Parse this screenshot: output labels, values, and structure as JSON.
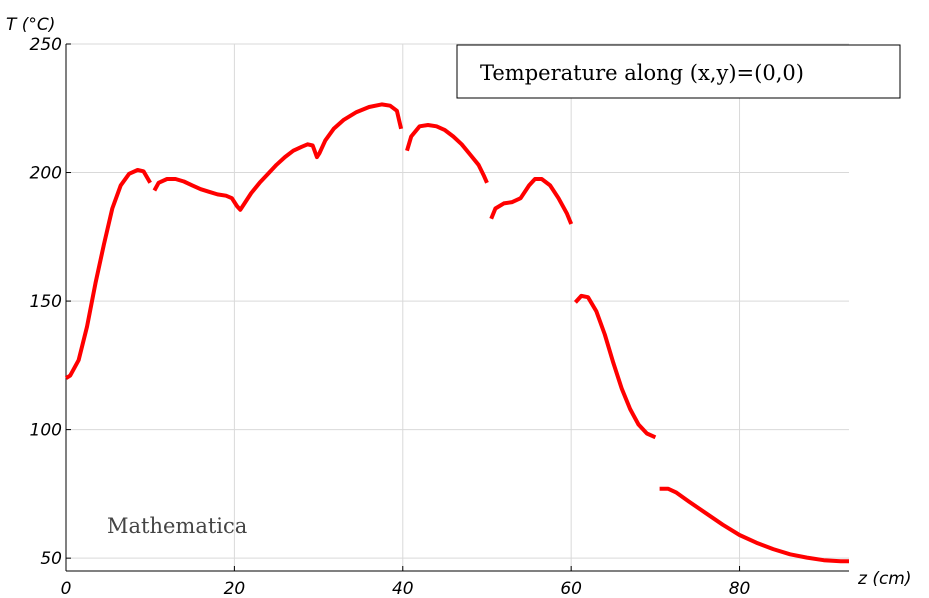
{
  "chart_data": {
    "type": "line",
    "title": "",
    "xlabel": "z (cm)",
    "ylabel": "T (°C)",
    "xlim": [
      0,
      93
    ],
    "ylim": [
      45,
      250
    ],
    "x_ticks": [
      0,
      20,
      40,
      60,
      80
    ],
    "y_ticks": [
      50,
      100,
      150,
      200,
      250
    ],
    "grid": true,
    "legend_placement": "top-right",
    "watermark": "Mathematica",
    "series": [
      {
        "name": "Temperature along (x,y)=(0,0)",
        "color": "#ff0000",
        "segments": [
          [
            [
              0,
              120
            ],
            [
              0.5,
              121
            ],
            [
              1.5,
              127
            ],
            [
              2.5,
              140
            ],
            [
              3.5,
              157
            ],
            [
              4.5,
              172
            ],
            [
              5.5,
              186
            ],
            [
              6.5,
              195
            ],
            [
              7.5,
              199.5
            ],
            [
              8.5,
              201
            ],
            [
              9.2,
              200.5
            ],
            [
              10,
              196
            ]
          ],
          [
            [
              10.5,
              193
            ],
            [
              11,
              196
            ],
            [
              12,
              197.5
            ],
            [
              13,
              197.5
            ],
            [
              14,
              196.5
            ],
            [
              15,
              195
            ],
            [
              16,
              193.5
            ],
            [
              17,
              192.5
            ],
            [
              18,
              191.5
            ],
            [
              19,
              191
            ],
            [
              19.7,
              190
            ],
            [
              20.3,
              187
            ],
            [
              20.7,
              185.5
            ],
            [
              21,
              187
            ],
            [
              22,
              192
            ],
            [
              23,
              196
            ],
            [
              24,
              199.5
            ],
            [
              25,
              203
            ],
            [
              26,
              206
            ],
            [
              27,
              208.5
            ],
            [
              28,
              210
            ],
            [
              28.7,
              211
            ],
            [
              29.3,
              210.5
            ],
            [
              29.8,
              206
            ],
            [
              30.1,
              207.5
            ],
            [
              30.8,
              212.5
            ],
            [
              31.8,
              217
            ],
            [
              33,
              220.5
            ],
            [
              34.5,
              223.5
            ],
            [
              36,
              225.5
            ],
            [
              37.5,
              226.5
            ],
            [
              38.5,
              226
            ],
            [
              39.3,
              224
            ],
            [
              39.8,
              217
            ]
          ],
          [
            [
              40.5,
              208.5
            ],
            [
              41,
              214
            ],
            [
              42,
              218
            ],
            [
              43,
              218.5
            ],
            [
              44,
              218
            ],
            [
              45,
              216.5
            ],
            [
              46,
              214
            ],
            [
              47,
              211
            ],
            [
              48,
              207
            ],
            [
              49,
              203
            ],
            [
              49.6,
              199
            ],
            [
              50,
              196
            ]
          ],
          [
            [
              50.5,
              182
            ],
            [
              51,
              186
            ],
            [
              52,
              188
            ],
            [
              53,
              188.5
            ],
            [
              54,
              190
            ],
            [
              55,
              195
            ],
            [
              55.7,
              197.5
            ],
            [
              56.5,
              197.5
            ],
            [
              57.5,
              195
            ],
            [
              58.5,
              190
            ],
            [
              59.5,
              184
            ],
            [
              60,
              180
            ]
          ],
          [
            [
              60.5,
              149.5
            ],
            [
              61.2,
              152
            ],
            [
              62,
              151.5
            ],
            [
              63,
              146
            ],
            [
              64,
              137
            ],
            [
              65,
              126
            ],
            [
              66,
              116
            ],
            [
              67,
              108
            ],
            [
              68,
              102
            ],
            [
              69,
              98.5
            ],
            [
              70,
              97
            ]
          ],
          [
            [
              70.5,
              77
            ],
            [
              71.5,
              77
            ],
            [
              72.5,
              75.5
            ],
            [
              74,
              72
            ],
            [
              76,
              67.5
            ],
            [
              78,
              63
            ],
            [
              80,
              59
            ],
            [
              82,
              56
            ],
            [
              84,
              53.5
            ],
            [
              86,
              51.5
            ],
            [
              88,
              50.2
            ],
            [
              90,
              49.2
            ],
            [
              92,
              48.8
            ],
            [
              93,
              48.8
            ]
          ]
        ]
      }
    ]
  }
}
